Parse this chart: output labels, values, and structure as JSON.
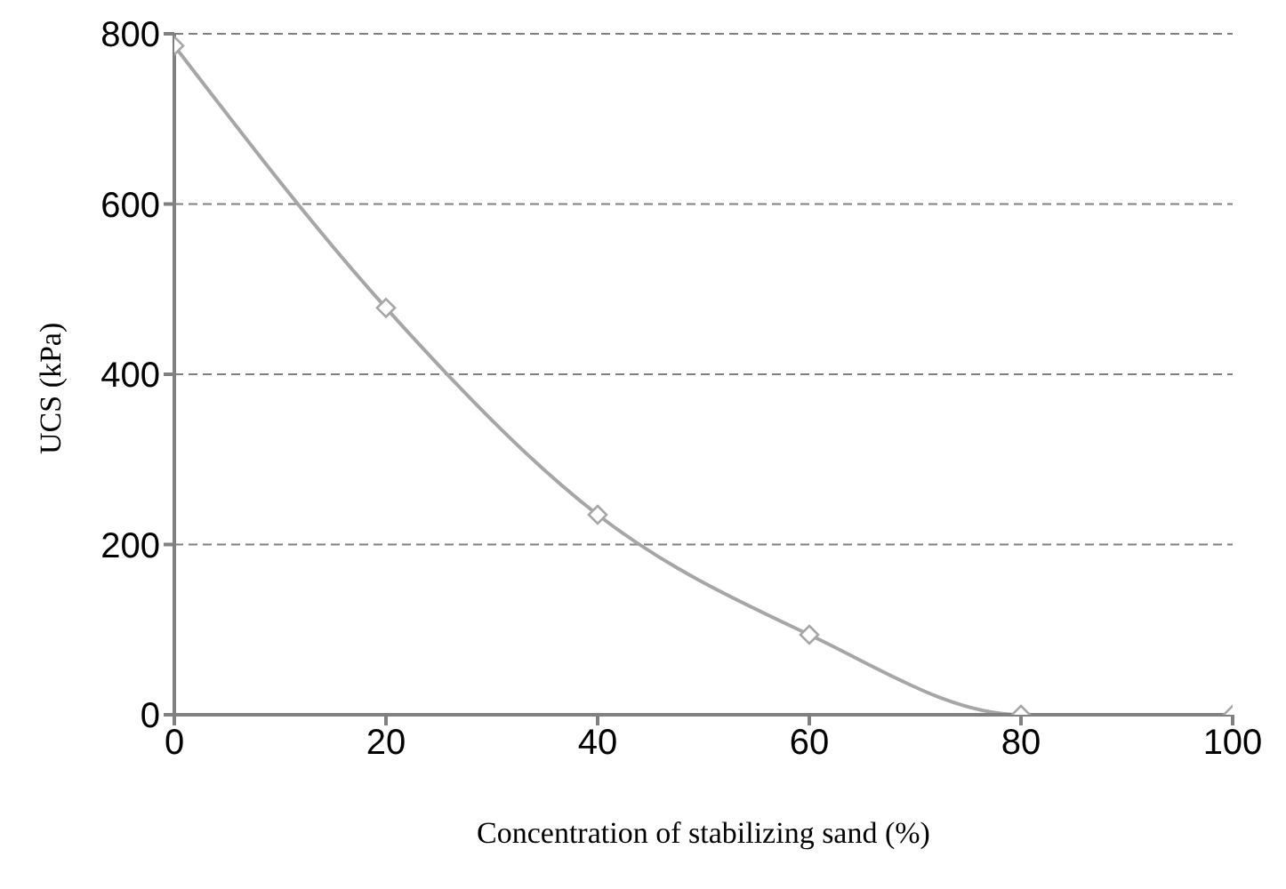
{
  "chart_data": {
    "type": "line",
    "xlabel": "Concentration of stabilizing sand (%)",
    "ylabel": "UCS (kPa)",
    "x": [
      0,
      20,
      40,
      60,
      80,
      100
    ],
    "series": [
      {
        "color": "#a6a6a6",
        "values": [
          786,
          478,
          235,
          94,
          0,
          0
        ]
      }
    ],
    "xlim": [
      0,
      100
    ],
    "xticks": [
      0,
      20,
      40,
      60,
      80,
      100
    ],
    "ylim": [
      0,
      800
    ],
    "yticks": [
      0,
      200,
      400,
      600,
      800
    ],
    "grid": "y",
    "marker": "diamond",
    "legend": false
  }
}
